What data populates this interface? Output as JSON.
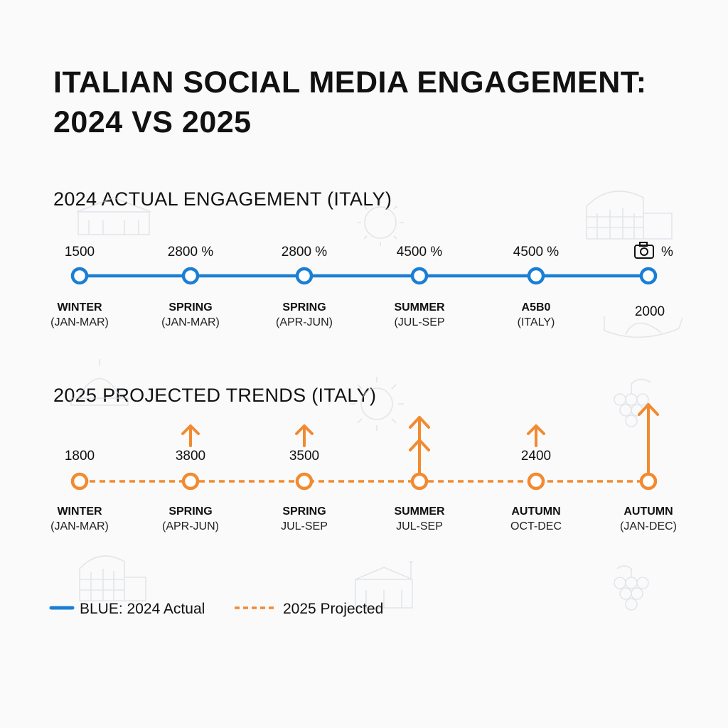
{
  "title_line1": "ITALIAN SOCIAL MEDIA ENGAGEMENT:",
  "title_line2": "2024 VS 2025",
  "colors": {
    "actual": "#1a7fd4",
    "projected": "#f28a30",
    "background": "#fafafa"
  },
  "chart_data": [
    {
      "type": "line",
      "title": "2024 ACTUAL ENGAGEMENT (ITALY)",
      "line_style": "solid",
      "color": "#1a7fd4",
      "points": [
        {
          "value_label": "1500",
          "season": "WINTER",
          "range": "(JAN-MAR)"
        },
        {
          "value_label": "2800 %",
          "season": "SPRING",
          "range": "(JAN-MAR)"
        },
        {
          "value_label": "2800 %",
          "season": "SPRING",
          "range": "(APR-JUN)"
        },
        {
          "value_label": "4500 %",
          "season": "SUMMER",
          "range": "(JUL-SEP"
        },
        {
          "value_label": "4500 %",
          "season": "A5B0",
          "range": "(ITALY)"
        },
        {
          "value_label": "%",
          "value_icon": "camera-icon",
          "season": "",
          "range": "2000"
        }
      ]
    },
    {
      "type": "line",
      "title": "2025 PROJECTED TRENDS (ITALY)",
      "line_style": "dashed",
      "color": "#f28a30",
      "points": [
        {
          "value_label": "1800",
          "season": "WINTER",
          "range": "(JAN-MAR)",
          "arrows": 0
        },
        {
          "value_label": "3800",
          "season": "SPRING",
          "range": "(APR-JUN)",
          "arrows": 1
        },
        {
          "value_label": "3500",
          "season": "SPRING",
          "range": "JUL-SEP",
          "arrows": 1
        },
        {
          "value_label": "",
          "season": "SUMMER",
          "range": "JUL-SEP",
          "arrows": 2
        },
        {
          "value_label": "2400",
          "season": "AUTUMN",
          "range": "OCT-DEC",
          "arrows": 1
        },
        {
          "value_label": "",
          "season": "AUTUMN",
          "range": "(JAN-DEC)",
          "arrows": 3
        }
      ]
    }
  ],
  "legend": [
    {
      "label": "BLUE: 2024 Actual",
      "style": "solid",
      "color": "#1a7fd4"
    },
    {
      "label": "2025 Projected",
      "style": "dashed",
      "color": "#f28a30"
    }
  ]
}
